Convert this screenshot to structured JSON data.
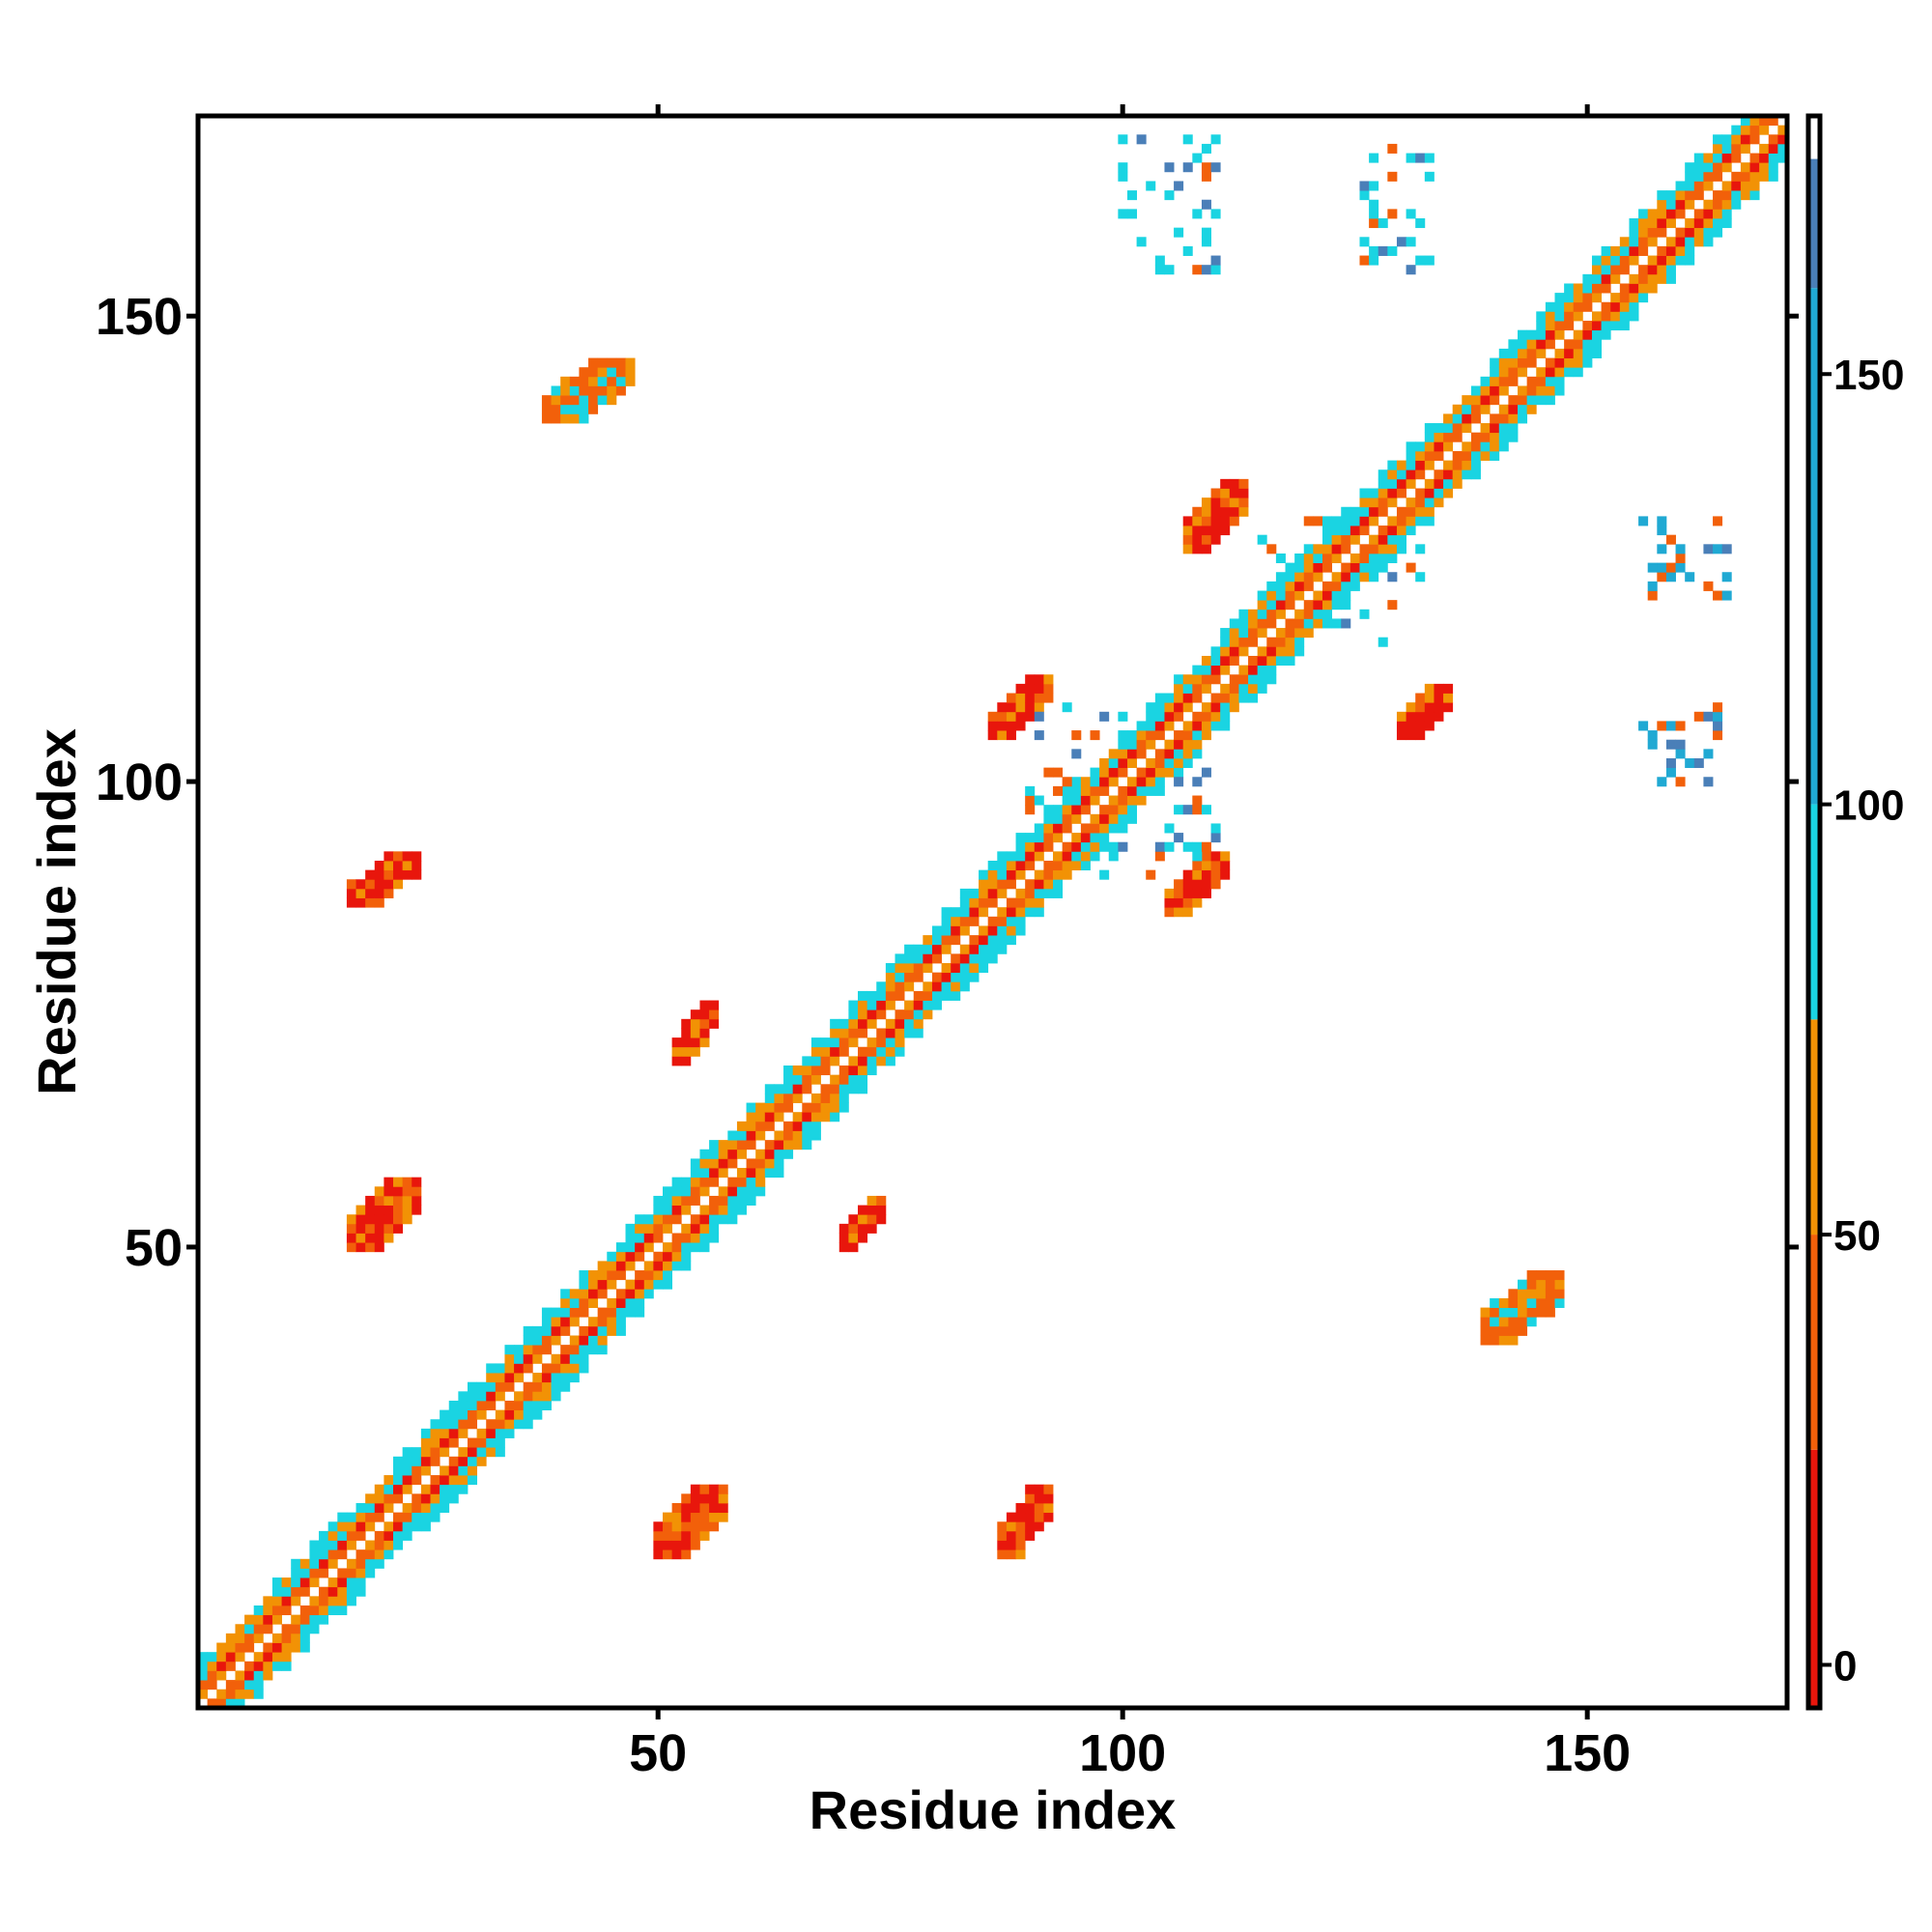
{
  "chart_data": {
    "type": "heatmap",
    "title": "",
    "xlabel": "Residue index",
    "ylabel": "Residue index",
    "xlim": [
      0.5,
      171.5
    ],
    "ylim": [
      0.5,
      171.5
    ],
    "x_ticks": [
      50,
      100,
      150
    ],
    "y_ticks": [
      50,
      100,
      150
    ],
    "colorbar": {
      "range": [
        -5,
        180
      ],
      "ticks": [
        0,
        50,
        100,
        150
      ],
      "bands": [
        {
          "from": -5,
          "to": 25,
          "color": "#e8160c"
        },
        {
          "from": 25,
          "to": 50,
          "color": "#f2600a"
        },
        {
          "from": 50,
          "to": 75,
          "color": "#f29205"
        },
        {
          "from": 75,
          "to": 100,
          "color": "#1ad4e2"
        },
        {
          "from": 100,
          "to": 160,
          "color": "#20a9d3"
        },
        {
          "from": 160,
          "to": 175,
          "color": "#4a7fb8"
        },
        {
          "from": 175,
          "to": 180,
          "color": "#ffffff"
        }
      ]
    },
    "colors": {
      "red": "#e8160c",
      "orange": "#f2600a",
      "light_orange": "#f29205",
      "cyan": "#1ad4e2",
      "blue": "#4a7fb8"
    },
    "regions": [
      {
        "kind": "diagonal",
        "from": 1,
        "to": 171,
        "width": 5
      },
      {
        "kind": "sheet",
        "x": [
          50,
          57
        ],
        "y": [
          17,
          24
        ],
        "value": 10
      },
      {
        "kind": "sheet",
        "x": [
          17,
          24
        ],
        "y": [
          50,
          57
        ],
        "value": 10
      },
      {
        "kind": "sheet",
        "x": [
          87,
          92
        ],
        "y": [
          17,
          24
        ],
        "value": 20
      },
      {
        "kind": "sheet",
        "x": [
          17,
          24
        ],
        "y": [
          87,
          92
        ],
        "value": 20
      },
      {
        "kind": "sheet",
        "x": [
          52,
          56
        ],
        "y": [
          70,
          76
        ],
        "value": 15
      },
      {
        "kind": "sheet",
        "x": [
          70,
          74
        ],
        "y": [
          50,
          55
        ],
        "value": 20
      },
      {
        "kind": "sheet",
        "x": [
          86,
          92
        ],
        "y": [
          105,
          111
        ],
        "value": 20
      },
      {
        "kind": "sheet",
        "x": [
          105,
          111
        ],
        "y": [
          86,
          92
        ],
        "value": 20
      },
      {
        "kind": "sheet",
        "x": [
          107,
          113
        ],
        "y": [
          125,
          132
        ],
        "value": 20
      },
      {
        "kind": "sheet",
        "x": [
          130,
          135
        ],
        "y": [
          105,
          110
        ],
        "value": 20
      },
      {
        "kind": "sheet",
        "x": [
          38,
          47
        ],
        "y": [
          139,
          145
        ],
        "value": 45
      },
      {
        "kind": "sheet",
        "x": [
          139,
          147
        ],
        "y": [
          40,
          47
        ],
        "value": 45
      },
      {
        "kind": "scatter",
        "x": [
          100,
          110
        ],
        "y": [
          155,
          169
        ],
        "value": 90
      },
      {
        "kind": "scatter",
        "x": [
          125,
          133
        ],
        "y": [
          155,
          168
        ],
        "value": 90
      },
      {
        "kind": "scatter",
        "x": [
          156,
          165
        ],
        "y": [
          100,
          108
        ],
        "value": 100
      },
      {
        "kind": "scatter",
        "x": [
          156,
          165
        ],
        "y": [
          120,
          128
        ],
        "value": 110
      },
      {
        "kind": "scatter",
        "x": [
          115,
          132
        ],
        "y": [
          115,
          128
        ],
        "value": 95
      },
      {
        "kind": "scatter",
        "x": [
          90,
          110
        ],
        "y": [
          90,
          108
        ],
        "value": 95
      }
    ]
  }
}
